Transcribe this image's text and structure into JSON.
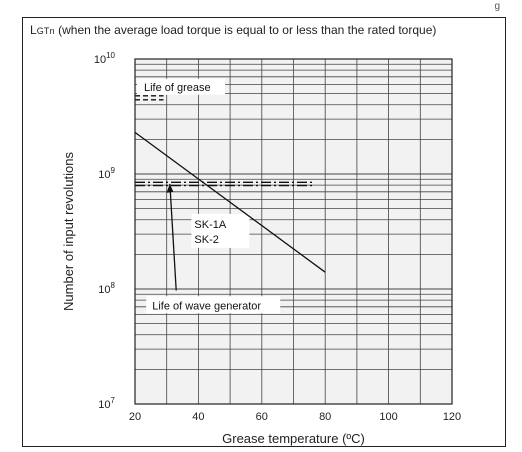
{
  "header": {
    "title_prefix": "L",
    "title_sub": "GTn",
    "title_rest": " (when the average load torque is equal to or less than the rated torque)",
    "corner_mark": "g"
  },
  "chart_data": {
    "type": "line",
    "title": "LGTn (when the average load torque is equal to or less than the rated torque)",
    "xlabel": "Grease temperature (ºC)",
    "ylabel": "Number of input revolutions",
    "xlim": [
      20,
      120
    ],
    "ylim": [
      10000000,
      10000000000
    ],
    "yscale": "log",
    "x_ticks": [
      "20",
      "40",
      "60",
      "80",
      "100",
      "120"
    ],
    "y_ticks": [
      {
        "base": "10",
        "exp": "7",
        "value": 10000000
      },
      {
        "base": "10",
        "exp": "8",
        "value": 100000000
      },
      {
        "base": "10",
        "exp": "9",
        "value": 1000000000
      },
      {
        "base": "10",
        "exp": "10",
        "value": 10000000000
      }
    ],
    "grid": true,
    "series": [
      {
        "name": "Life of grease",
        "style": "dashed",
        "x": [
          20,
          29
        ],
        "y": [
          4600000000,
          4600000000
        ]
      },
      {
        "name": "SK-1A SK-2",
        "style": "solid",
        "x": [
          20,
          80
        ],
        "y": [
          2300000000,
          140000000
        ]
      },
      {
        "name": "Life of wave generator",
        "style": "dash-dot",
        "x": [
          20,
          76
        ],
        "y": [
          820000000,
          820000000
        ]
      },
      {
        "name": "Life of wave generator arrow",
        "style": "solid",
        "x": [
          33,
          31
        ],
        "y": [
          97000000,
          820000000
        ]
      }
    ],
    "annotations": {
      "life_of_grease": "Life of grease",
      "sk1a": "SK-1A",
      "sk2": "SK-2",
      "wave_generator": "Life of wave generator"
    }
  }
}
